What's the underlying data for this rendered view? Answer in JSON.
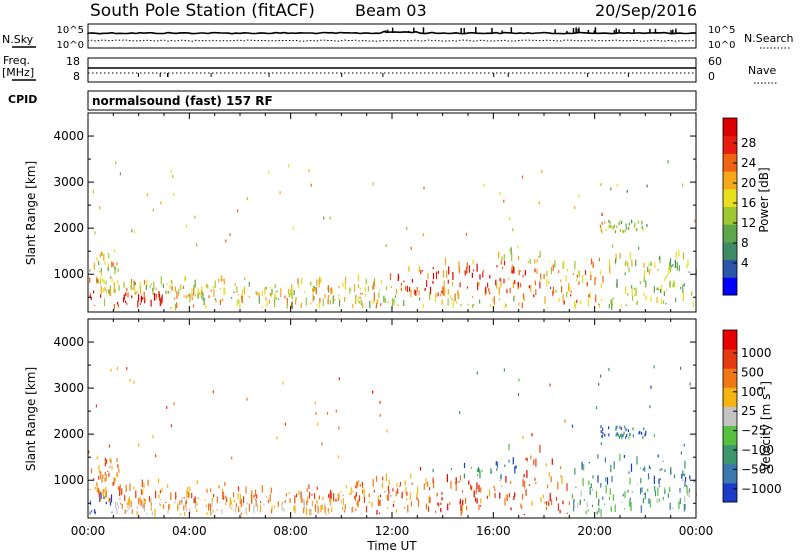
{
  "header": {
    "title": "South Pole Station (fitACF)",
    "beam": "Beam 03",
    "date": "20/Sep/2016"
  },
  "top_panels": {
    "nsky_label": "N.Sky",
    "nsky_ticks": [
      "10^5",
      "10^0"
    ],
    "nsearch_label": "N.Search",
    "nsearch_ticks": [
      "10^5",
      "10^0"
    ],
    "freq_label": "Freq.",
    "freq_unit": "[MHz]",
    "freq_ticks": [
      "18",
      "8"
    ],
    "nave_label": "Nave",
    "nave_ticks": [
      "60",
      "0"
    ],
    "cpid_label": "CPID",
    "cpid_text": "normalsound (fast) 157 RF"
  },
  "chart_data": [
    {
      "type": "heatmap",
      "name": "power-panel",
      "ylabel": "Slant Range [km]",
      "yticks": [
        1000,
        2000,
        3000,
        4000
      ],
      "ylim": [
        180,
        4500
      ],
      "xlim_hours": [
        0,
        24
      ],
      "colorbar_label": "Power [dB]",
      "colorbar_ticks": [
        "28",
        "24",
        "20",
        "16",
        "12",
        "8",
        "4"
      ],
      "colors": [
        "#0000ff",
        "#2a55a8",
        "#3e8a66",
        "#5ea64a",
        "#9ec832",
        "#e8e01e",
        "#f5a818",
        "#f06414",
        "#e61e10",
        "#dd0000"
      ]
    },
    {
      "type": "heatmap",
      "name": "velocity-panel",
      "ylabel": "Slant Range [km]",
      "yticks": [
        1000,
        2000,
        3000,
        4000
      ],
      "ylim": [
        180,
        4500
      ],
      "xlim_hours": [
        0,
        24
      ],
      "xticks": [
        "00:00",
        "04:00",
        "08:00",
        "12:00",
        "16:00",
        "20:00",
        "00:00"
      ],
      "xlabel": "Time UT",
      "colorbar_label": "Velocity [m s",
      "colorbar_label_sup": "-1",
      "colorbar_label_end": "]",
      "colorbar_ticks": [
        "1000",
        "500",
        "100",
        "25",
        "−25",
        "−100",
        "−500",
        "−1000"
      ],
      "colors": [
        "#1a3cc8",
        "#3c78b0",
        "#3c966e",
        "#58c040",
        "#c4c4c4",
        "#f5b410",
        "#f07814",
        "#e63c14",
        "#e60000"
      ]
    }
  ]
}
